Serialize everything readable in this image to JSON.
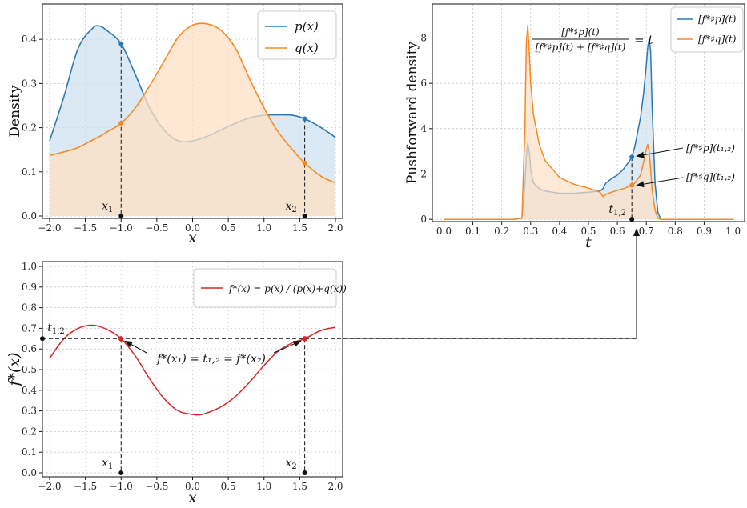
{
  "colors": {
    "blue": "#2e78b5",
    "orange": "#f58a25",
    "red": "#d62728",
    "fill_blue": "#cfe1f0",
    "fill_orange": "#fde0c4"
  },
  "chart_data": [
    {
      "id": "density",
      "type": "area",
      "xlabel": "x",
      "ylabel": "Density",
      "xlim": [
        -2.0,
        2.0
      ],
      "ylim": [
        0.0,
        0.48
      ],
      "xticks": [
        "−2.0",
        "−1.5",
        "−1.0",
        "−0.5",
        "0.0",
        "0.5",
        "1.0",
        "1.5",
        "2.0"
      ],
      "yticks": [
        "0.0",
        "0.1",
        "0.2",
        "0.3",
        "0.4"
      ],
      "grid": true,
      "legend": "top-right",
      "x": [
        -2.0,
        -1.8,
        -1.6,
        -1.4,
        -1.3,
        -1.2,
        -1.0,
        -0.8,
        -0.6,
        -0.4,
        -0.2,
        0.0,
        0.2,
        0.4,
        0.6,
        0.8,
        1.0,
        1.2,
        1.4,
        1.57,
        1.8,
        2.0
      ],
      "series": [
        {
          "name": "p(x)",
          "values": [
            0.17,
            0.27,
            0.38,
            0.425,
            0.43,
            0.42,
            0.39,
            0.32,
            0.245,
            0.195,
            0.17,
            0.17,
            0.18,
            0.195,
            0.21,
            0.222,
            0.228,
            0.229,
            0.228,
            0.22,
            0.2,
            0.178
          ]
        },
        {
          "name": "q(x)",
          "values": [
            0.137,
            0.145,
            0.155,
            0.172,
            0.18,
            0.19,
            0.21,
            0.245,
            0.295,
            0.35,
            0.405,
            0.432,
            0.435,
            0.42,
            0.38,
            0.31,
            0.245,
            0.19,
            0.15,
            0.12,
            0.09,
            0.075
          ]
        }
      ],
      "markers": [
        {
          "x": -1.0,
          "p": 0.39,
          "q": 0.21,
          "label": "x",
          "sub": "1"
        },
        {
          "x": 1.57,
          "p": 0.22,
          "q": 0.12,
          "label": "x",
          "sub": "2"
        }
      ]
    },
    {
      "id": "pushforward",
      "type": "area",
      "xlabel": "t",
      "ylabel": "Pushforward density",
      "xlim": [
        -0.04,
        1.04
      ],
      "ylim": [
        -0.1,
        9.5
      ],
      "xticks": [
        "0.0",
        "0.1",
        "0.2",
        "0.3",
        "0.4",
        "0.5",
        "0.6",
        "0.7",
        "0.8",
        "0.9",
        "1.0"
      ],
      "yticks": [
        "0",
        "2",
        "4",
        "6",
        "8"
      ],
      "grid": true,
      "legend": "top-right",
      "x": [
        0.0,
        0.24,
        0.27,
        0.28,
        0.285,
        0.29,
        0.295,
        0.3,
        0.31,
        0.33,
        0.35,
        0.4,
        0.45,
        0.5,
        0.54,
        0.55,
        0.56,
        0.58,
        0.6,
        0.62,
        0.64,
        0.65,
        0.66,
        0.68,
        0.69,
        0.7,
        0.705,
        0.71,
        0.715,
        0.72,
        0.73,
        0.74,
        0.75,
        1.0
      ],
      "series": [
        {
          "name": "[f*♯p](t)",
          "values": [
            0,
            0,
            0.05,
            1.5,
            2.8,
            3.4,
            3.0,
            2.2,
            1.6,
            1.35,
            1.25,
            1.15,
            1.15,
            1.2,
            1.25,
            1.35,
            1.6,
            1.8,
            1.95,
            2.2,
            2.55,
            2.75,
            3.2,
            4.5,
            5.5,
            6.8,
            7.6,
            7.95,
            7.4,
            5.0,
            1.6,
            0.3,
            0,
            0
          ]
        },
        {
          "name": "[f*♯q](t)",
          "values": [
            0,
            0,
            0.05,
            4.0,
            7.8,
            8.55,
            7.4,
            6.0,
            4.6,
            3.3,
            2.6,
            1.85,
            1.55,
            1.38,
            1.2,
            1.0,
            1.1,
            1.2,
            1.28,
            1.35,
            1.45,
            1.5,
            1.6,
            1.95,
            2.5,
            3.1,
            3.3,
            3.0,
            2.2,
            1.3,
            0.4,
            0.05,
            0,
            0
          ]
        }
      ],
      "marker": {
        "t": 0.65,
        "p": 2.75,
        "q": 1.5,
        "label": "t",
        "sub": "1,2"
      },
      "annotations": {
        "p": "[f*♯p](t₁,₂)",
        "q": "[f*♯q](t₁,₂)",
        "formula_num": "[f*♯p](t)",
        "formula_den": "[f*♯p](t) + [f*♯q](t)",
        "formula_rhs": "= t"
      }
    },
    {
      "id": "fstar",
      "type": "line",
      "xlabel": "x",
      "ylabel": "f*(x)",
      "xlim": [
        -2.0,
        2.0
      ],
      "ylim": [
        0.0,
        1.0
      ],
      "xticks": [
        "−2.0",
        "−1.5",
        "−1.0",
        "−0.5",
        "0.0",
        "0.5",
        "1.0",
        "1.5",
        "2.0"
      ],
      "yticks": [
        "0.0",
        "0.1",
        "0.2",
        "0.3",
        "0.4",
        "0.5",
        "0.6",
        "0.7",
        "0.8",
        "0.9",
        "1.0"
      ],
      "grid": true,
      "legend": "top-right",
      "x": [
        -2.0,
        -1.8,
        -1.6,
        -1.4,
        -1.2,
        -1.0,
        -0.8,
        -0.6,
        -0.4,
        -0.2,
        0.0,
        0.1,
        0.2,
        0.4,
        0.6,
        0.8,
        1.0,
        1.2,
        1.4,
        1.57,
        1.8,
        2.0
      ],
      "series": [
        {
          "name": "f*(x) = p(x) / (p(x)+q(x))",
          "values": [
            0.555,
            0.65,
            0.7,
            0.715,
            0.695,
            0.65,
            0.565,
            0.455,
            0.36,
            0.3,
            0.283,
            0.281,
            0.29,
            0.32,
            0.37,
            0.44,
            0.52,
            0.59,
            0.63,
            0.65,
            0.69,
            0.705
          ]
        }
      ],
      "hline": 0.65,
      "markers": [
        {
          "x": -1.0,
          "y": 0.65,
          "label": "x",
          "sub": "1"
        },
        {
          "x": 1.57,
          "y": 0.65,
          "label": "x",
          "sub": "2"
        }
      ],
      "annotation": "f*(x₁) = t₁,₂ = f*(x₂)",
      "tlabel": "t",
      "tsub": "1,2"
    }
  ]
}
